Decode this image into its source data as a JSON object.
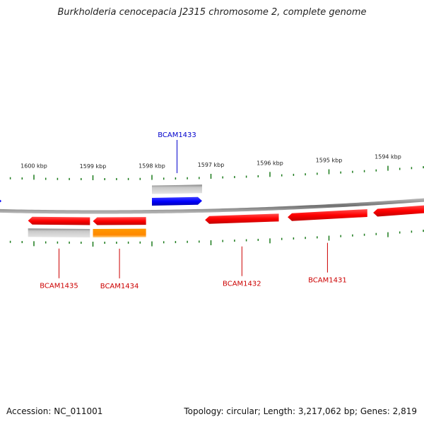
{
  "title": "Burkholderia cenocepacia J2315 chromosome 2, complete genome",
  "footer": {
    "accession": "Accession: NC_011001",
    "summary": "Topology: circular; Length: 3,217,062 bp; Genes: 2,819"
  },
  "scale": {
    "ticks": [
      {
        "label": "1600 kbp",
        "kbp": 1600
      },
      {
        "label": "1599 kbp",
        "kbp": 1599
      },
      {
        "label": "1598 kbp",
        "kbp": 1598
      },
      {
        "label": "1597 kbp",
        "kbp": 1597
      },
      {
        "label": "1596 kbp",
        "kbp": 1596
      },
      {
        "label": "1595 kbp",
        "kbp": 1595
      },
      {
        "label": "1594 kbp",
        "kbp": 1594
      }
    ]
  },
  "genes": [
    {
      "id": "blue-left",
      "label": "",
      "strand": "+",
      "color": "#0000ff",
      "start_kbp": 1600.9,
      "end_kbp": 1600.55,
      "label_color": ""
    },
    {
      "id": "BCAM1433",
      "label": "BCAM1433",
      "strand": "+",
      "color": "#0000ff",
      "start_kbp": 1598.0,
      "end_kbp": 1597.15,
      "label_color": "#0000cc",
      "mark_color": "#b0b0b0"
    },
    {
      "id": "BCAM1435",
      "label": "BCAM1435",
      "strand": "-",
      "color": "#ff0000",
      "start_kbp": 1600.1,
      "end_kbp": 1599.05,
      "label_color": "#cc0000",
      "mark_color": "#b0b0b0"
    },
    {
      "id": "BCAM1434",
      "label": "BCAM1434",
      "strand": "-",
      "color": "#ff0000",
      "start_kbp": 1599.0,
      "end_kbp": 1598.1,
      "label_color": "#cc0000",
      "mark_color": "#ff8c00"
    },
    {
      "id": "BCAM1432",
      "label": "BCAM1432",
      "strand": "-",
      "color": "#ff0000",
      "start_kbp": 1597.1,
      "end_kbp": 1595.85,
      "label_color": "#cc0000"
    },
    {
      "id": "BCAM1431",
      "label": "BCAM1431",
      "strand": "-",
      "color": "#ff0000",
      "start_kbp": 1595.7,
      "end_kbp": 1594.35,
      "label_color": "#cc0000"
    },
    {
      "id": "red-right",
      "label": "",
      "strand": "-",
      "color": "#ff0000",
      "start_kbp": 1594.25,
      "end_kbp": 1593.3,
      "label_color": ""
    }
  ],
  "colors": {
    "backbone": "#808080",
    "tick": "#1a7a1a",
    "text": "#222222"
  }
}
